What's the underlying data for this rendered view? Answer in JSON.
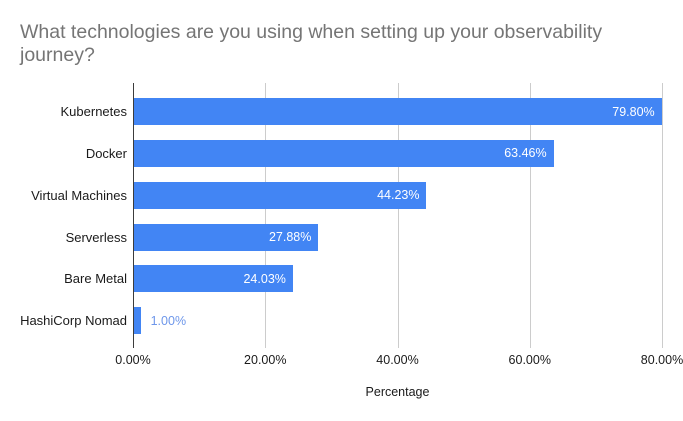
{
  "chart_data": {
    "type": "bar",
    "orientation": "horizontal",
    "title": "What technologies are you using when setting up your observability journey?",
    "categories": [
      "Kubernetes",
      "Docker",
      "Virtual Machines",
      "Serverless",
      "Bare Metal",
      "HashiCorp Nomad"
    ],
    "values": [
      79.8,
      63.46,
      44.23,
      27.88,
      24.03,
      1.0
    ],
    "value_labels": [
      "79.80%",
      "63.46%",
      "44.23%",
      "27.88%",
      "24.03%",
      "1.00%"
    ],
    "xlabel": "Percentage",
    "ylabel": "",
    "xlim": [
      0,
      80
    ],
    "x_tick_values": [
      0,
      20,
      40,
      60,
      80
    ],
    "x_ticks": [
      "0.00%",
      "20.00%",
      "40.00%",
      "60.00%",
      "80.00%"
    ],
    "grid": true,
    "legend": false,
    "colors": {
      "bar": "#4285f4",
      "inside_label": "#ffffff",
      "outside_label": "#6e97ea",
      "title": "#757575",
      "axis_text": "#1a1a1a",
      "gridline": "#cccccc",
      "axis_line": "#3c3c3c",
      "background": "#ffffff"
    }
  }
}
